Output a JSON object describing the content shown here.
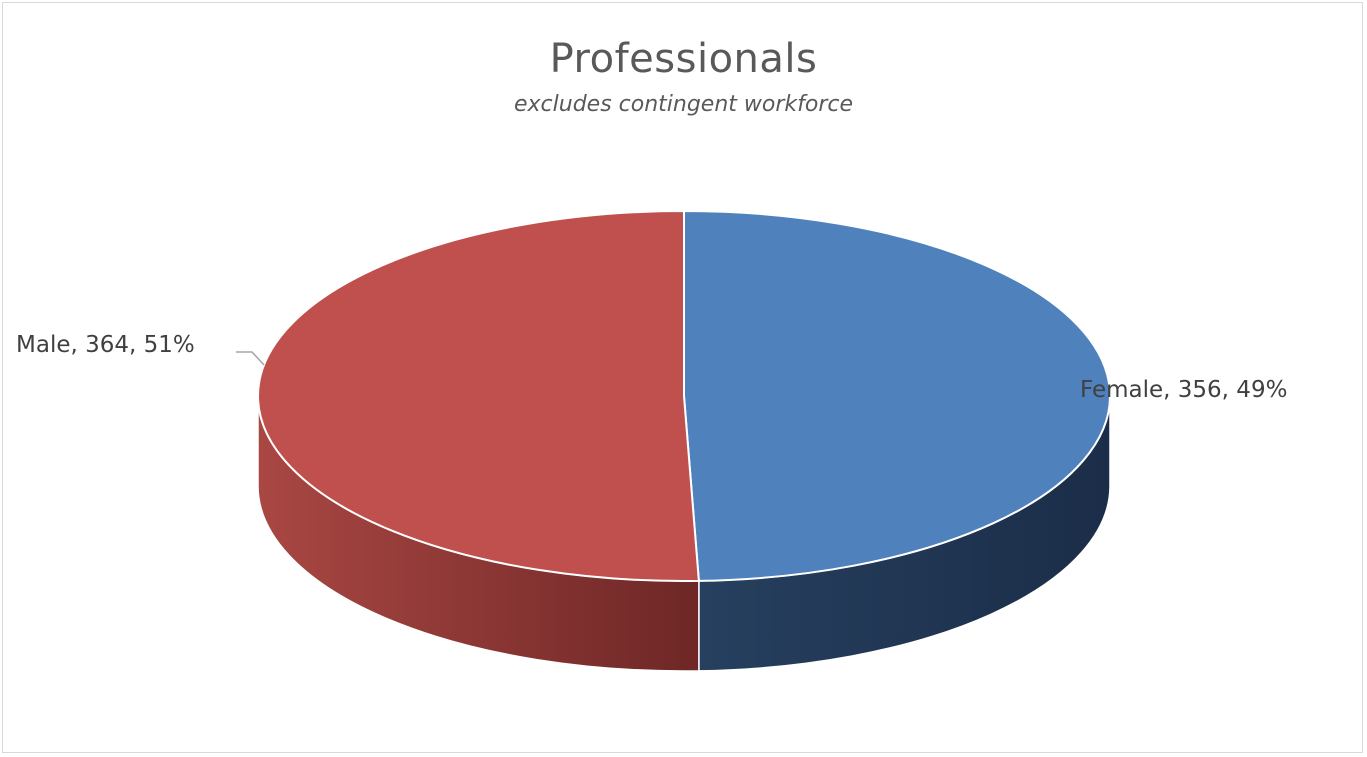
{
  "chart_data": {
    "type": "pie",
    "title": "Professionals",
    "subtitle": "excludes contingent workforce",
    "categories": [
      "Female",
      "Male"
    ],
    "values": [
      356,
      364
    ],
    "percentages": [
      49,
      51
    ],
    "colors": [
      "#4f81bd",
      "#c0504d"
    ],
    "side_colors": [
      "#1f3552",
      "#8b3232"
    ],
    "labels": [
      "Female, 356, 49%",
      "Male, 364, 51%"
    ],
    "style": "3d"
  }
}
